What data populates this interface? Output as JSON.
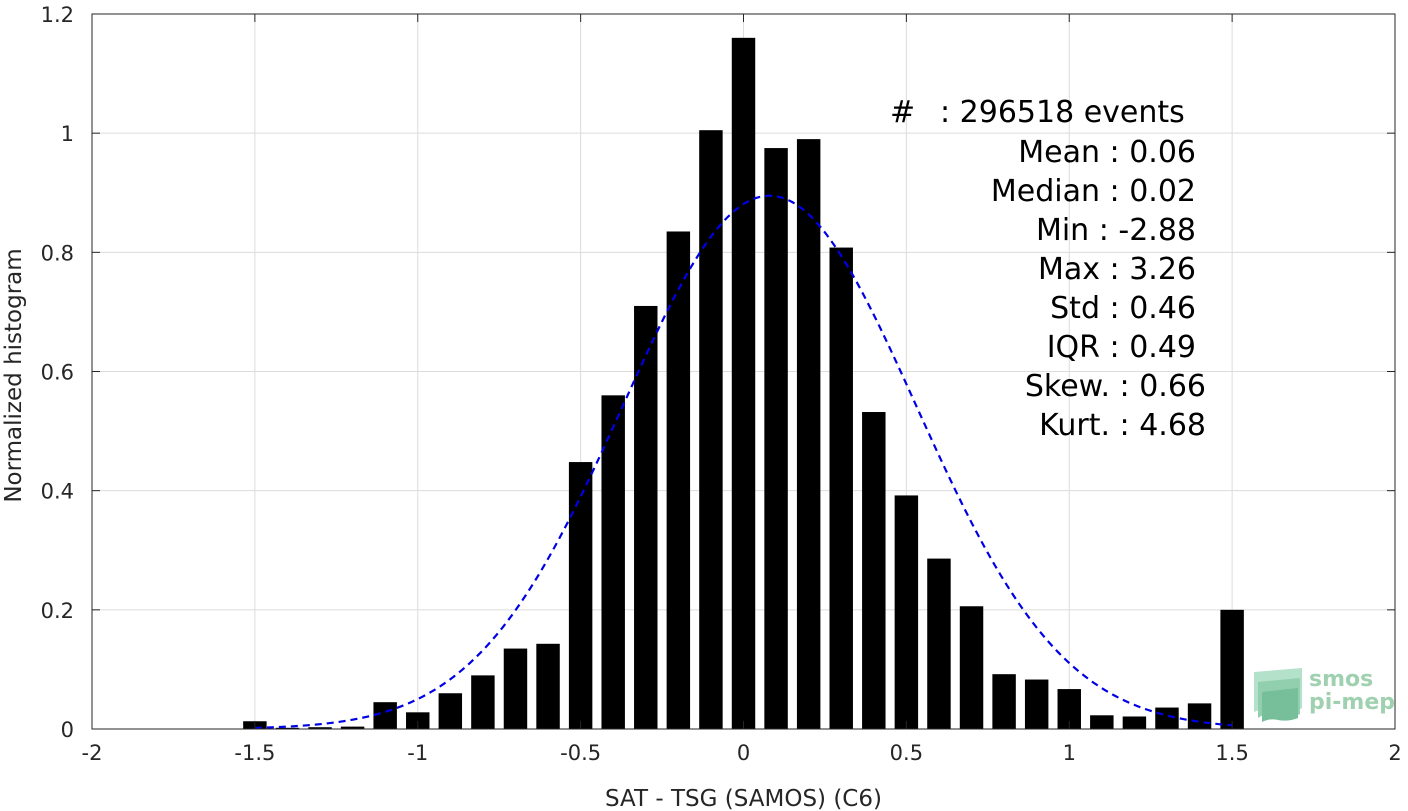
{
  "chart_data": {
    "type": "bar",
    "xlabel": "SAT - TSG (SAMOS) (C6)",
    "ylabel": "Normalized histogram",
    "xlim": [
      -2,
      2
    ],
    "ylim": [
      0,
      1.2
    ],
    "xticks": [
      "-2",
      "-1.5",
      "-1",
      "-0.5",
      "0",
      "0.5",
      "1",
      "1.5",
      "2"
    ],
    "yticks": [
      "0",
      "0.2",
      "0.4",
      "0.6",
      "0.8",
      "1",
      "1.2"
    ],
    "grid": true,
    "bar_color": "#000000",
    "bins": [
      {
        "x": -1.5,
        "y": 0.013
      },
      {
        "x": -1.4,
        "y": 0.002
      },
      {
        "x": -1.3,
        "y": 0.003
      },
      {
        "x": -1.2,
        "y": 0.004
      },
      {
        "x": -1.1,
        "y": 0.045
      },
      {
        "x": -1.0,
        "y": 0.028
      },
      {
        "x": -0.9,
        "y": 0.06
      },
      {
        "x": -0.8,
        "y": 0.09
      },
      {
        "x": -0.7,
        "y": 0.135
      },
      {
        "x": -0.6,
        "y": 0.143
      },
      {
        "x": -0.5,
        "y": 0.448
      },
      {
        "x": -0.4,
        "y": 0.56
      },
      {
        "x": -0.3,
        "y": 0.71
      },
      {
        "x": -0.2,
        "y": 0.835
      },
      {
        "x": -0.1,
        "y": 1.005
      },
      {
        "x": 0.0,
        "y": 1.16
      },
      {
        "x": 0.1,
        "y": 0.975
      },
      {
        "x": 0.2,
        "y": 0.99
      },
      {
        "x": 0.3,
        "y": 0.808
      },
      {
        "x": 0.4,
        "y": 0.532
      },
      {
        "x": 0.5,
        "y": 0.392
      },
      {
        "x": 0.6,
        "y": 0.286
      },
      {
        "x": 0.7,
        "y": 0.206
      },
      {
        "x": 0.8,
        "y": 0.092
      },
      {
        "x": 0.9,
        "y": 0.083
      },
      {
        "x": 1.0,
        "y": 0.067
      },
      {
        "x": 1.1,
        "y": 0.023
      },
      {
        "x": 1.2,
        "y": 0.021
      },
      {
        "x": 1.3,
        "y": 0.036
      },
      {
        "x": 1.4,
        "y": 0.043
      },
      {
        "x": 1.5,
        "y": 0.2
      }
    ],
    "fit": {
      "type": "gaussian",
      "mean": 0.08,
      "std": 0.45,
      "peak": 0.895,
      "range": [
        -1.5,
        1.5
      ],
      "color": "#0000e6",
      "style": "dashed"
    }
  },
  "stats": [
    {
      "label": "#",
      "value": ": 296518 events"
    },
    {
      "label": "Mean",
      "value": ": 0.06"
    },
    {
      "label": "Median",
      "value": ": 0.02"
    },
    {
      "label": "Min",
      "value": ": -2.88"
    },
    {
      "label": "Max",
      "value": ": 3.26"
    },
    {
      "label": "Std",
      "value": ": 0.46"
    },
    {
      "label": "IQR",
      "value": ": 0.49"
    },
    {
      "label": "Skew.",
      "value": ": 0.66"
    },
    {
      "label": "Kurt.",
      "value": ": 4.68"
    }
  ],
  "logo": {
    "line1": "smos",
    "line2": "pi-mep",
    "color": "#8fc9a3"
  }
}
